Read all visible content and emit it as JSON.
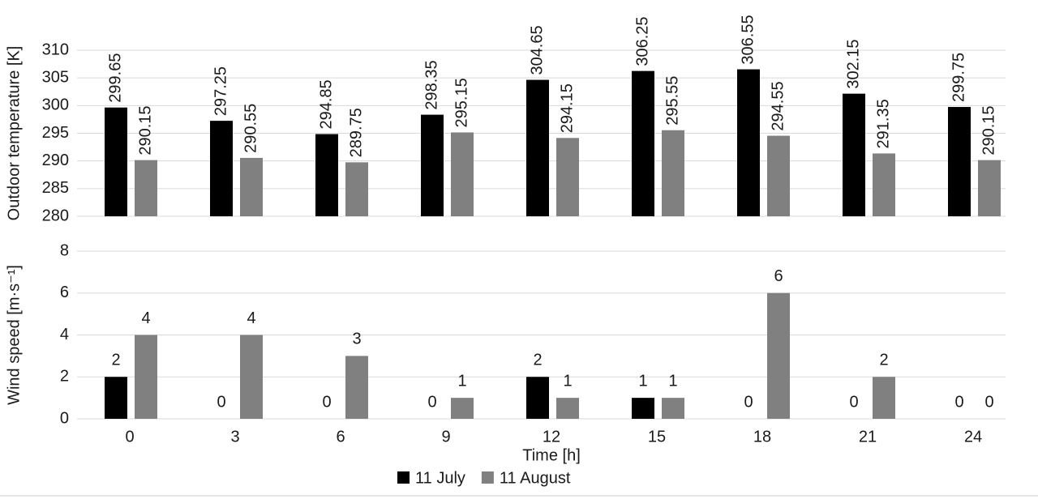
{
  "chart_data": [
    {
      "type": "bar",
      "y_label": "Outdoor temperature [K]",
      "series": [
        {
          "color": "#000000",
          "values": [
            299.65,
            297.25,
            294.85,
            298.35,
            304.65,
            306.25,
            306.55,
            302.15,
            299.75
          ]
        },
        {
          "color": "#808080",
          "values": [
            290.15,
            290.55,
            289.75,
            295.15,
            294.15,
            295.55,
            294.55,
            291.35,
            290.15
          ]
        }
      ],
      "ylim": [
        280,
        310
      ],
      "yticks": [
        280,
        285,
        290,
        295,
        300,
        305,
        310
      ],
      "grid": true
    },
    {
      "type": "bar",
      "y_label": "Wind speed [m·s⁻¹]",
      "x_label": "Time [h]",
      "categories": [
        "0",
        "3",
        "6",
        "9",
        "12",
        "15",
        "18",
        "21",
        "24"
      ],
      "series": [
        {
          "name": "11 July",
          "color": "#000000",
          "values": [
            2,
            0,
            0,
            0,
            2,
            1,
            0,
            0,
            0
          ]
        },
        {
          "name": "11 August",
          "color": "#808080",
          "values": [
            4,
            4,
            3,
            1,
            1,
            1,
            6,
            2,
            0
          ]
        }
      ],
      "ylim": [
        0,
        8
      ],
      "yticks": [
        0,
        2,
        4,
        6,
        8
      ],
      "grid": true,
      "legend": "bottom"
    }
  ]
}
